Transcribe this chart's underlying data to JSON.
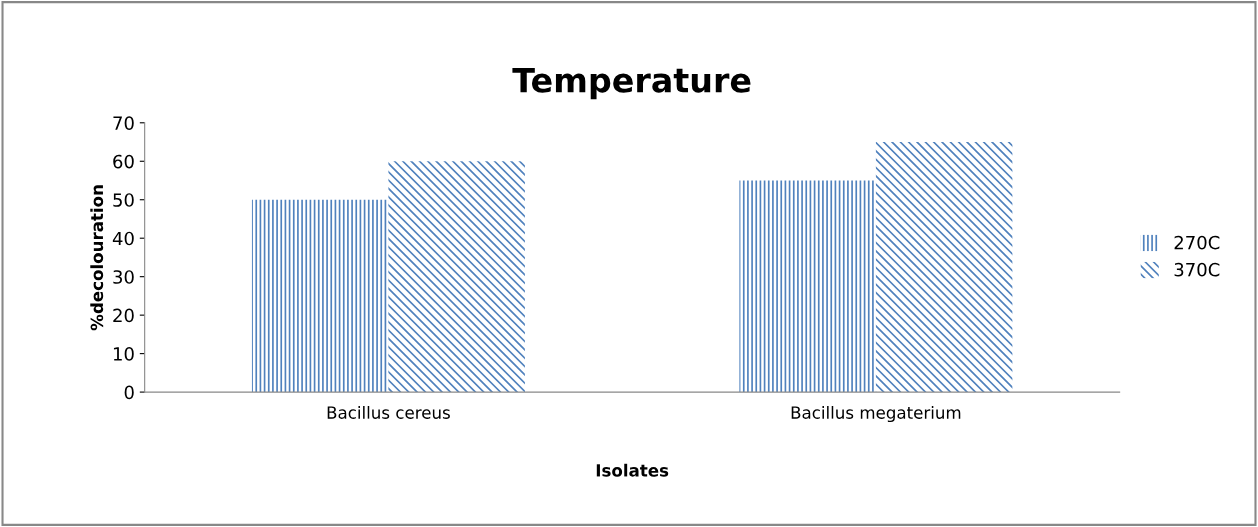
{
  "chart_data": {
    "type": "bar",
    "title": "Temperature",
    "xlabel": "Isolates",
    "ylabel": "%decolouration",
    "categories": [
      "Bacillus cereus",
      "Bacillus megaterium"
    ],
    "series": [
      {
        "name": "270C",
        "color": "#4f81bd",
        "values": [
          50,
          55
        ]
      },
      {
        "name": "370C",
        "color": "#4f81bd",
        "values": [
          60,
          65
        ]
      }
    ],
    "ylim": [
      0,
      70
    ],
    "yticks": [
      0,
      10,
      20,
      30,
      40,
      50,
      60,
      70
    ],
    "grid": false,
    "legend": "right"
  }
}
